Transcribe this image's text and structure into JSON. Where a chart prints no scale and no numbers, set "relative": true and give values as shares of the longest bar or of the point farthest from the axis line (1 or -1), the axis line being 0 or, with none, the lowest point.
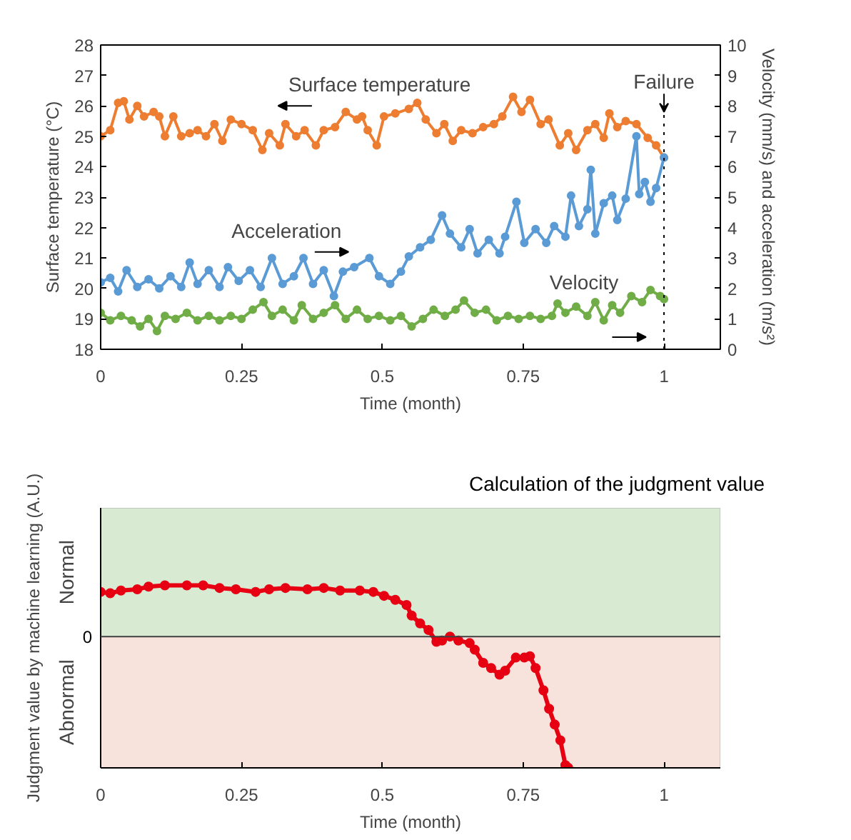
{
  "chart_data": [
    {
      "type": "line",
      "marker": "circle",
      "xlabel": "Time (month)",
      "ylabel": "Surface temperature (°C)",
      "y2label": "Velocity (mm/s) and acceleration (m/s²)",
      "xlim": [
        0,
        1.1
      ],
      "xticks": [
        0,
        0.25,
        0.5,
        0.75,
        1
      ],
      "ylim": [
        18,
        28
      ],
      "yticks": [
        18,
        19,
        20,
        21,
        22,
        23,
        24,
        25,
        26,
        27,
        28
      ],
      "y2lim": [
        0,
        10
      ],
      "y2ticks": [
        0,
        1,
        2,
        3,
        4,
        5,
        6,
        7,
        8,
        9,
        10
      ],
      "grid": false,
      "ref_lines": [
        {
          "axis": "x",
          "value": 1,
          "label": "Failure",
          "line_style": "dotted",
          "color": "#000000"
        }
      ],
      "series": [
        {
          "name": "Surface temperature",
          "color": "#ed7d31",
          "x": [
            0,
            0.017,
            0.031,
            0.041,
            0.051,
            0.065,
            0.077,
            0.094,
            0.104,
            0.114,
            0.129,
            0.143,
            0.158,
            0.172,
            0.187,
            0.202,
            0.216,
            0.231,
            0.25,
            0.27,
            0.287,
            0.299,
            0.318,
            0.328,
            0.347,
            0.362,
            0.382,
            0.396,
            0.416,
            0.435,
            0.455,
            0.464,
            0.474,
            0.49,
            0.503,
            0.523,
            0.547,
            0.562,
            0.577,
            0.596,
            0.61,
            0.625,
            0.64,
            0.66,
            0.679,
            0.698,
            0.713,
            0.732,
            0.747,
            0.762,
            0.781,
            0.795,
            0.815,
            0.83,
            0.844,
            0.864,
            0.878,
            0.893,
            0.903,
            0.917,
            0.932,
            0.951,
            0.971,
            0.986,
            1.0
          ],
          "values": [
            25.0,
            25.2,
            26.1,
            26.15,
            25.55,
            26.0,
            25.65,
            25.8,
            25.65,
            25.0,
            25.65,
            25.0,
            25.1,
            25.2,
            25.0,
            25.4,
            24.85,
            25.55,
            25.4,
            25.2,
            24.55,
            25.1,
            24.7,
            25.4,
            25.0,
            25.2,
            24.7,
            25.2,
            25.3,
            25.8,
            25.55,
            25.65,
            25.2,
            24.7,
            25.65,
            25.75,
            25.9,
            26.1,
            25.55,
            25.1,
            25.4,
            24.85,
            25.2,
            25.1,
            25.3,
            25.4,
            25.65,
            26.3,
            25.8,
            26.2,
            25.4,
            25.55,
            24.7,
            25.1,
            24.55,
            25.2,
            25.4,
            24.95,
            25.75,
            25.3,
            25.5,
            25.4,
            24.95,
            24.7,
            24.3
          ]
        },
        {
          "name": "Acceleration",
          "color": "#5b9bd5",
          "axis": "y2",
          "x": [
            0,
            0.017,
            0.031,
            0.046,
            0.065,
            0.085,
            0.104,
            0.124,
            0.143,
            0.158,
            0.172,
            0.192,
            0.211,
            0.226,
            0.245,
            0.265,
            0.284,
            0.304,
            0.323,
            0.343,
            0.36,
            0.377,
            0.396,
            0.414,
            0.43,
            0.45,
            0.477,
            0.494,
            0.514,
            0.533,
            0.547,
            0.567,
            0.586,
            0.606,
            0.62,
            0.64,
            0.655,
            0.669,
            0.689,
            0.708,
            0.718,
            0.738,
            0.752,
            0.772,
            0.791,
            0.805,
            0.825,
            0.835,
            0.849,
            0.864,
            0.87,
            0.878,
            0.893,
            0.908,
            0.917,
            0.932,
            0.951,
            0.956,
            0.966,
            0.976,
            0.986,
            1.0
          ],
          "values": [
            2.2,
            2.35,
            1.9,
            2.6,
            2.05,
            2.3,
            2.0,
            2.4,
            2.05,
            2.85,
            2.15,
            2.6,
            2.05,
            2.7,
            2.25,
            2.6,
            2.05,
            3.0,
            2.15,
            2.4,
            3.0,
            2.15,
            2.6,
            1.75,
            2.55,
            2.7,
            3.0,
            2.4,
            2.15,
            2.55,
            3.05,
            3.35,
            3.6,
            4.4,
            3.8,
            3.35,
            3.95,
            3.15,
            3.6,
            3.15,
            3.7,
            4.85,
            3.5,
            3.95,
            3.5,
            4.05,
            3.7,
            5.05,
            4.05,
            4.6,
            5.9,
            3.8,
            4.8,
            5.05,
            4.25,
            4.95,
            7.0,
            5.1,
            5.5,
            4.85,
            5.3,
            6.3
          ]
        },
        {
          "name": "Velocity",
          "color": "#70ad47",
          "axis": "y2",
          "x": [
            0,
            0.017,
            0.036,
            0.055,
            0.07,
            0.085,
            0.1,
            0.114,
            0.133,
            0.153,
            0.172,
            0.192,
            0.211,
            0.231,
            0.25,
            0.27,
            0.289,
            0.304,
            0.323,
            0.343,
            0.357,
            0.377,
            0.396,
            0.416,
            0.435,
            0.455,
            0.474,
            0.494,
            0.514,
            0.533,
            0.552,
            0.572,
            0.591,
            0.611,
            0.63,
            0.645,
            0.664,
            0.684,
            0.703,
            0.723,
            0.742,
            0.762,
            0.781,
            0.801,
            0.811,
            0.825,
            0.844,
            0.864,
            0.878,
            0.893,
            0.908,
            0.922,
            0.942,
            0.961,
            0.976,
            0.993,
            1.0
          ],
          "values": [
            1.2,
            0.95,
            1.1,
            0.95,
            0.75,
            1.0,
            0.6,
            1.1,
            1.0,
            1.2,
            0.95,
            1.1,
            0.95,
            1.1,
            1.0,
            1.3,
            1.55,
            1.1,
            1.3,
            0.95,
            1.45,
            1.0,
            1.2,
            1.45,
            1.0,
            1.3,
            1.0,
            1.1,
            0.95,
            1.1,
            0.75,
            1.0,
            1.3,
            1.1,
            1.3,
            1.6,
            1.2,
            1.3,
            0.95,
            1.1,
            1.0,
            1.1,
            1.0,
            1.1,
            1.5,
            1.2,
            1.4,
            1.1,
            1.55,
            0.95,
            1.45,
            1.2,
            1.75,
            1.55,
            1.95,
            1.75,
            1.65
          ]
        }
      ]
    },
    {
      "type": "line",
      "marker": "circle",
      "relative": true,
      "xlabel": "Time (month)",
      "ylabel": "Judgment value by machine learning (A.U.)",
      "xlim": [
        0,
        1.1
      ],
      "xticks": [
        0,
        0.25,
        0.5,
        0.75,
        1
      ],
      "grid": false,
      "annotations": [
        "Calculation of the judgment value"
      ],
      "ref_lines": [
        {
          "axis": "y",
          "value": 0,
          "label": "0",
          "color": "#404040"
        }
      ],
      "bands": [
        {
          "axis": "y",
          "from": 0,
          "to": 0.98,
          "label": "Normal",
          "color": "#d9ead3"
        },
        {
          "axis": "y",
          "from": -1,
          "to": 0,
          "label": "Abnormal",
          "color": "#f8e2dc"
        }
      ],
      "series": [
        {
          "color": "#e60012",
          "x": [
            0,
            0.017,
            0.036,
            0.065,
            0.085,
            0.114,
            0.153,
            0.182,
            0.211,
            0.24,
            0.275,
            0.299,
            0.328,
            0.367,
            0.396,
            0.425,
            0.46,
            0.484,
            0.503,
            0.523,
            0.543,
            0.552,
            0.567,
            0.582,
            0.596,
            0.606,
            0.62,
            0.635,
            0.655,
            0.664,
            0.679,
            0.693,
            0.708,
            0.718,
            0.737,
            0.752,
            0.762,
            0.772,
            0.786,
            0.796,
            0.806,
            0.816,
            0.825,
            0.83
          ],
          "values": [
            0.34,
            0.33,
            0.35,
            0.36,
            0.38,
            0.39,
            0.39,
            0.39,
            0.37,
            0.36,
            0.34,
            0.36,
            0.37,
            0.36,
            0.37,
            0.35,
            0.35,
            0.34,
            0.31,
            0.28,
            0.24,
            0.16,
            0.1,
            0.05,
            -0.04,
            -0.03,
            0.0,
            -0.03,
            -0.05,
            -0.1,
            -0.2,
            -0.24,
            -0.29,
            -0.26,
            -0.16,
            -0.16,
            -0.15,
            -0.24,
            -0.41,
            -0.55,
            -0.67,
            -0.79,
            -0.98,
            -1.0
          ]
        }
      ]
    }
  ]
}
